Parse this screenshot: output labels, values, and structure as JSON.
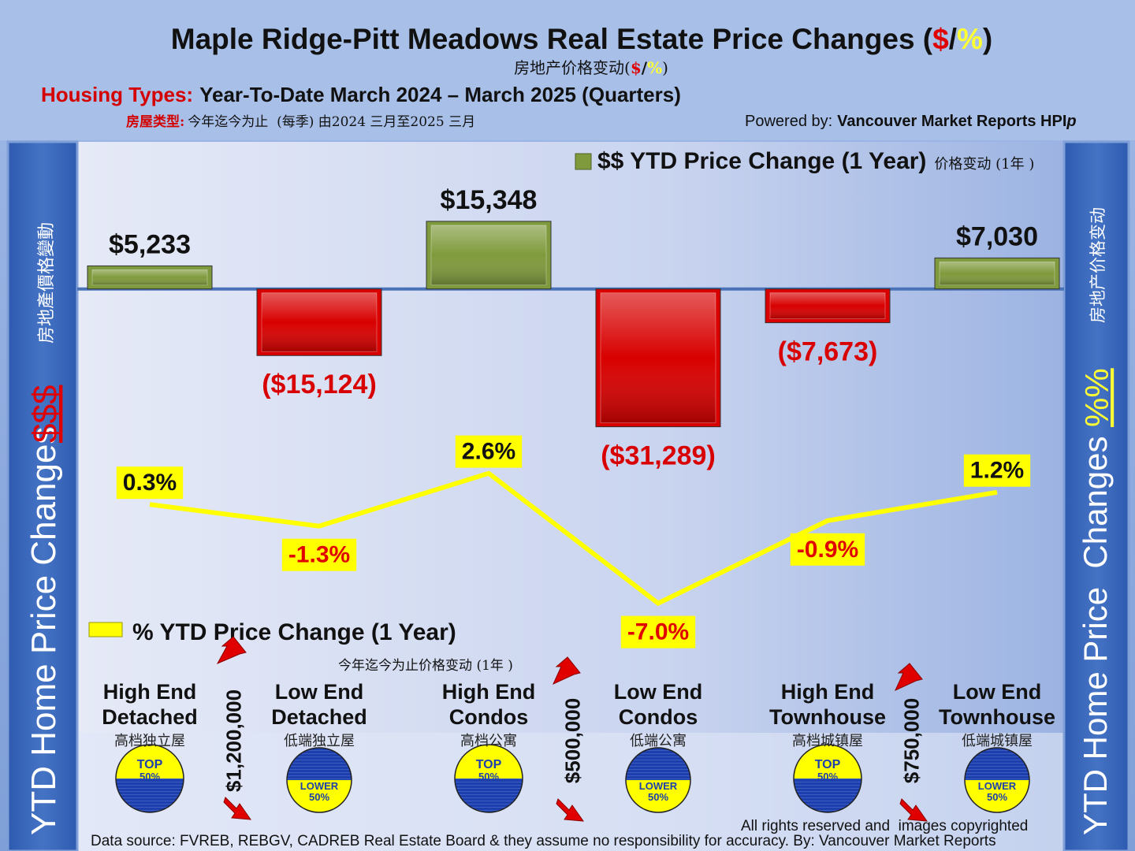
{
  "header": {
    "title": [
      "Maple Ridge-Pitt Meadows Real Estate Price Changes (",
      "$",
      "/",
      "%",
      ")"
    ],
    "subtitle_zh": [
      "房地产价格变动(",
      "$",
      "/",
      "%",
      ")"
    ],
    "housing_types_label": "Housing Types:",
    "housing_types_text": "Year-To-Date March 2024 – March 2025 (Quarters)",
    "housing_types_label_zh": "房屋类型:",
    "housing_types_text_zh": "今年迄今为止  (每季) 由2024 三月至2025 三月",
    "powered_by": "Powered by:",
    "powered_by_source": "Vancouver Market Reports HPI",
    "powered_by_suffix": "p"
  },
  "left_panel": {
    "title": "YTD Home Price Changes",
    "symbol": "$$$",
    "title_zh": "房地產價格變動"
  },
  "right_panel": {
    "title": "YTD Home Price  Changes",
    "symbol": "%%",
    "title_zh": "房地产价格变动"
  },
  "chart_data": {
    "type": "bar",
    "categories": [
      "High End Detached",
      "Low End Detached",
      "High End Condos",
      "Low End Condos",
      "High End Townhouse",
      "Low End Townhouse"
    ],
    "categories_zh": [
      "高档独立屋",
      "低端独立屋",
      "高档公寓",
      "低端公寓",
      "高档城镇屋",
      "低端城镇屋"
    ],
    "series": [
      {
        "name": "$$ YTD Price Change (1 Year)",
        "name_zh": "价格变动 (1年 )",
        "type": "bar",
        "values": [
          5233,
          -15124,
          15348,
          -31289,
          -7673,
          7030
        ],
        "value_labels": [
          "$5,233",
          "($15,124)",
          "$15,348",
          "($31,289)",
          "($7,673)",
          "$7,030"
        ],
        "color_positive": "#7f9a3c",
        "color_negative": "#d80000"
      },
      {
        "name": "% YTD Price Change (1 Year)",
        "name_zh": "今年迄今为止价格变动 (1年 )",
        "type": "line",
        "axis": "y2",
        "values": [
          0.3,
          -1.3,
          2.6,
          -7.0,
          -0.9,
          1.2
        ],
        "value_labels": [
          "0.3%",
          "-1.3%",
          "2.6%",
          "-7.0%",
          "-0.9%",
          "1.2%"
        ],
        "color": "#ffff00"
      }
    ],
    "ylim": [
      -77500,
      35000
    ],
    "y2lim": [
      -9,
      27.6
    ],
    "price_thresholds": [
      "$1,200,000",
      "$500,000",
      "$750,000"
    ],
    "badges": [
      [
        "TOP",
        "50%"
      ],
      [
        "LOWER",
        "50%"
      ],
      [
        "TOP",
        "50%"
      ],
      [
        "LOWER",
        "50%"
      ],
      [
        "TOP",
        "50%"
      ],
      [
        "LOWER",
        "50%"
      ]
    ]
  },
  "footer": {
    "rights": "All rights reserved and  images copyrighted",
    "source": "Data source: FVREB, REBGV, CADREB Real Estate Board & they assume no responsibility for accuracy. By: Vancouver Market Reports"
  }
}
